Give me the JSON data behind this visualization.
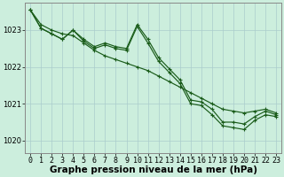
{
  "bg_color": "#cceedd",
  "grid_color": "#aacccc",
  "line_color": "#1a5c1a",
  "xlabel": "Graphe pression niveau de la mer (hPa)",
  "xlabel_fontsize": 7.5,
  "tick_fontsize": 6,
  "ylim": [
    1019.65,
    1023.75
  ],
  "xlim": [
    -0.5,
    23.5
  ],
  "yticks": [
    1020,
    1021,
    1022,
    1023
  ],
  "xticks": [
    0,
    1,
    2,
    3,
    4,
    5,
    6,
    7,
    8,
    9,
    10,
    11,
    12,
    13,
    14,
    15,
    16,
    17,
    18,
    19,
    20,
    21,
    22,
    23
  ],
  "line1": [
    1023.55,
    1023.15,
    1023.0,
    1022.9,
    1022.85,
    1022.65,
    1022.45,
    1022.3,
    1022.2,
    1022.1,
    1022.0,
    1021.9,
    1021.75,
    1021.6,
    1021.45,
    1021.3,
    1021.15,
    1021.0,
    1020.85,
    1020.8,
    1020.75,
    1020.8,
    1020.85,
    1020.75
  ],
  "line2": [
    1023.55,
    1023.05,
    1022.9,
    1022.75,
    1023.0,
    1022.75,
    1022.55,
    1022.65,
    1022.55,
    1022.5,
    1023.15,
    1022.75,
    1022.25,
    1021.95,
    1021.65,
    1021.1,
    1021.05,
    1020.85,
    1020.5,
    1020.5,
    1020.45,
    1020.65,
    1020.8,
    1020.7
  ],
  "line3": [
    1023.55,
    1023.05,
    1022.9,
    1022.75,
    1023.0,
    1022.7,
    1022.5,
    1022.6,
    1022.5,
    1022.45,
    1023.1,
    1022.65,
    1022.15,
    1021.85,
    1021.55,
    1021.0,
    1020.95,
    1020.7,
    1020.4,
    1020.35,
    1020.3,
    1020.55,
    1020.7,
    1020.65
  ]
}
